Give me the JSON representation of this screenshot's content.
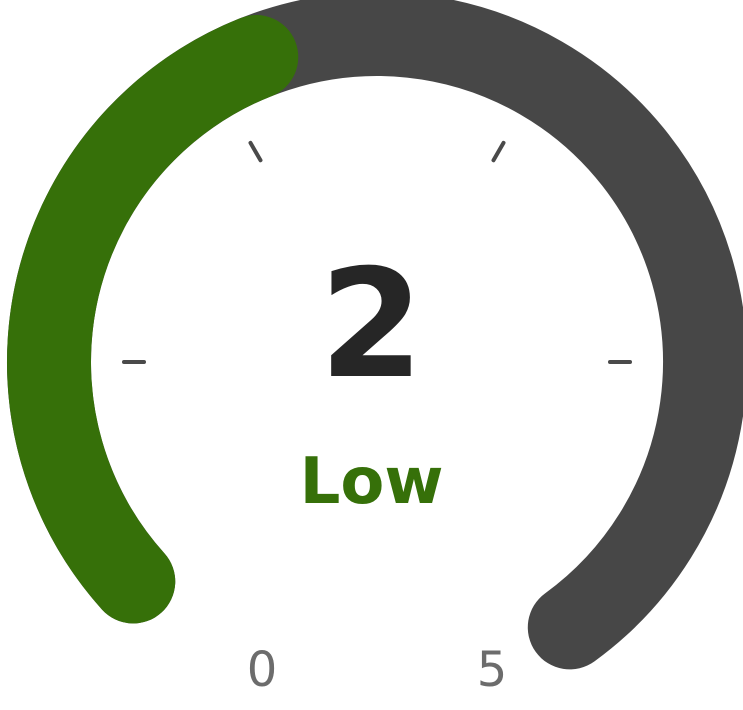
{
  "gauge": {
    "value": 2,
    "value_text": "2",
    "min": 0,
    "max": 5,
    "min_label": "0",
    "max_label": "5",
    "level_label": "Low",
    "colors": {
      "fill": "#367009",
      "track": "#474747",
      "value_text": "#262626",
      "level_text": "#367009",
      "scale_text": "#6c6c6c",
      "tick": "#4a4a4a"
    }
  }
}
